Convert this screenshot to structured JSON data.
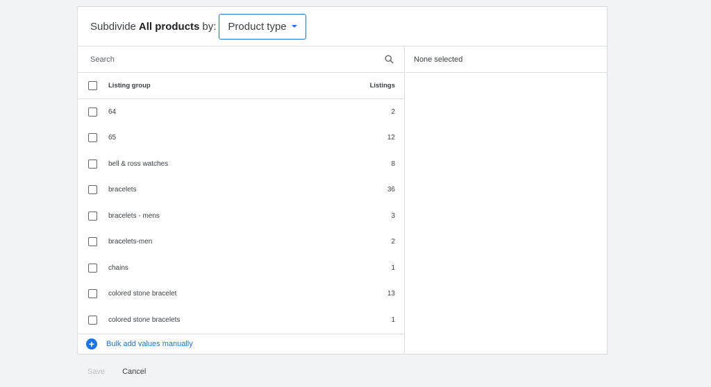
{
  "header": {
    "prefix": "Subdivide",
    "entity": "All products",
    "suffix": "by:",
    "dimension": "Product type"
  },
  "search": {
    "placeholder": "Search"
  },
  "table": {
    "col_group": "Listing group",
    "col_listings": "Listings",
    "rows": [
      {
        "label": "64",
        "count": "2"
      },
      {
        "label": "65",
        "count": "12"
      },
      {
        "label": "bell & ross watches",
        "count": "8"
      },
      {
        "label": "bracelets",
        "count": "36"
      },
      {
        "label": "bracelets - mens",
        "count": "3"
      },
      {
        "label": "bracelets-men",
        "count": "2"
      },
      {
        "label": "chains",
        "count": "1"
      },
      {
        "label": "colored stone bracelet",
        "count": "13"
      },
      {
        "label": "colored stone bracelets",
        "count": "1"
      }
    ]
  },
  "bulk_add": "Bulk add values manually",
  "selected": {
    "empty_text": "None selected"
  },
  "footer": {
    "save": "Save",
    "cancel": "Cancel"
  },
  "colors": {
    "accent": "#1a73e8",
    "background": "#f1f3f4"
  }
}
